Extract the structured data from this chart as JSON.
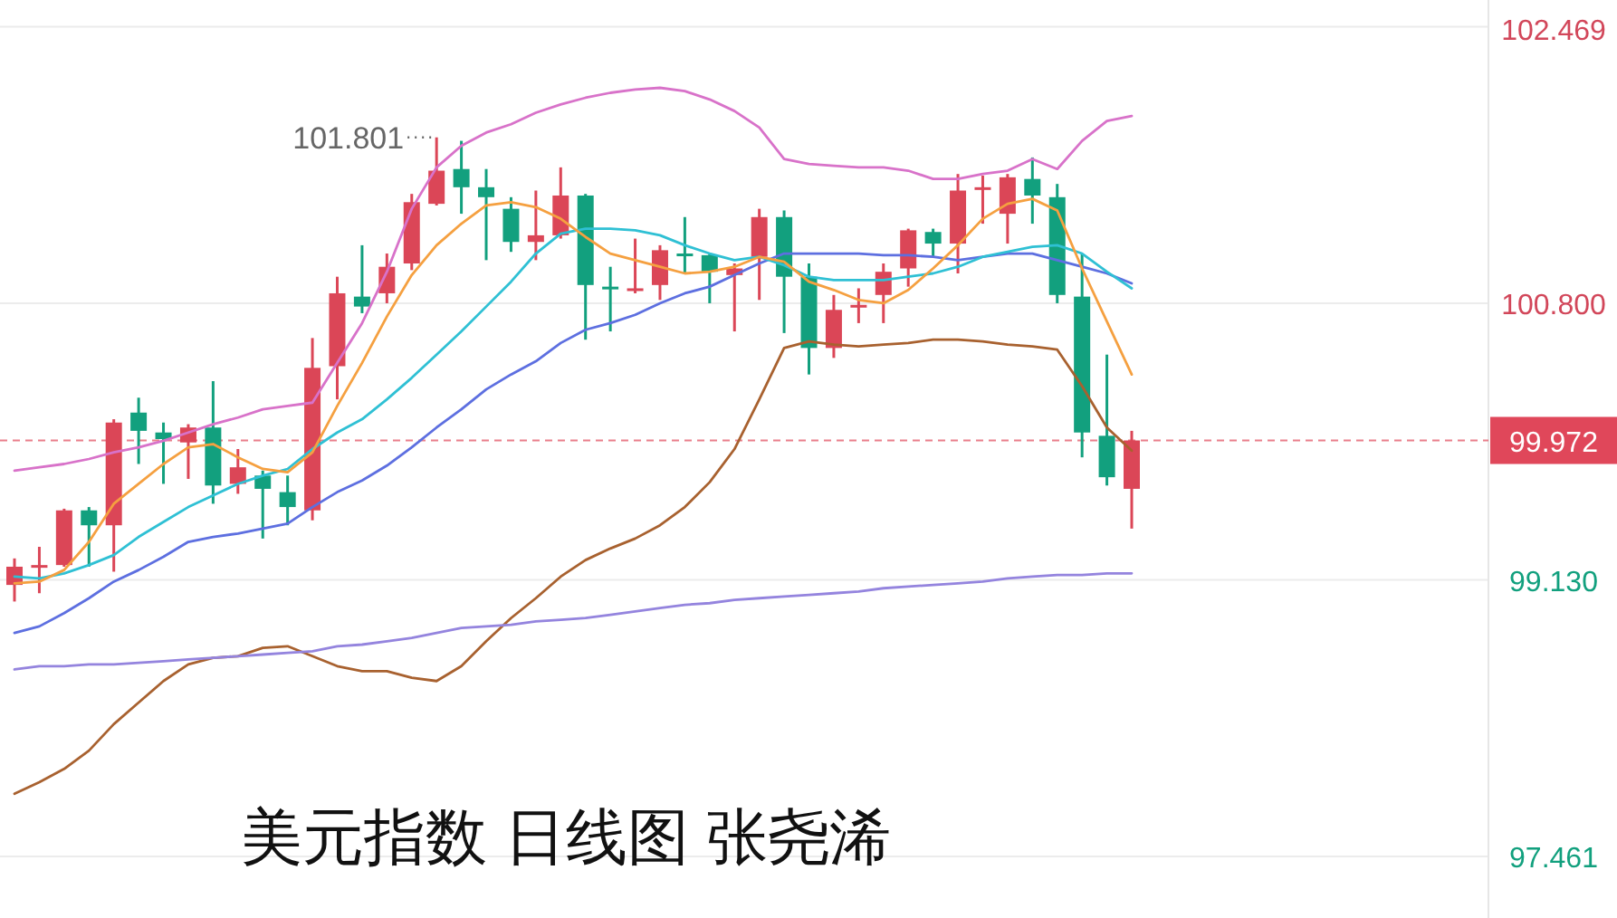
{
  "chart_data": {
    "type": "candlestick",
    "title": "美元指数 日线图 张尧浠",
    "categories": [
      null,
      null,
      null,
      null,
      null,
      null,
      null,
      null,
      null,
      null,
      null,
      null,
      null,
      null,
      null,
      null,
      null,
      null,
      null,
      null,
      null,
      null,
      null,
      null,
      null,
      null,
      null,
      null,
      null,
      null,
      null,
      null,
      null,
      null,
      null,
      null,
      null,
      null,
      null,
      null,
      null,
      null,
      null,
      null,
      null,
      null
    ],
    "ohlc": [
      [
        99.1,
        99.26,
        99.0,
        99.21
      ],
      [
        99.21,
        99.33,
        99.05,
        99.22
      ],
      [
        99.22,
        99.56,
        99.21,
        99.55
      ],
      [
        99.55,
        99.57,
        99.21,
        99.46
      ],
      [
        99.46,
        100.1,
        99.18,
        100.08
      ],
      [
        100.14,
        100.23,
        99.83,
        100.03
      ],
      [
        100.02,
        100.08,
        99.71,
        99.98
      ],
      [
        99.96,
        100.07,
        99.74,
        100.05
      ],
      [
        100.05,
        100.33,
        99.59,
        99.7
      ],
      [
        99.71,
        99.92,
        99.65,
        99.81
      ],
      [
        99.76,
        99.79,
        99.38,
        99.68
      ],
      [
        99.66,
        99.76,
        99.46,
        99.57
      ],
      [
        99.55,
        100.59,
        99.49,
        100.41
      ],
      [
        100.42,
        100.96,
        100.22,
        100.86
      ],
      [
        100.84,
        101.15,
        100.74,
        100.78
      ],
      [
        100.86,
        101.1,
        100.8,
        101.02
      ],
      [
        101.04,
        101.46,
        101.0,
        101.41
      ],
      [
        101.4,
        101.801,
        101.39,
        101.6
      ],
      [
        101.61,
        101.78,
        101.34,
        101.5
      ],
      [
        101.5,
        101.61,
        101.06,
        101.44
      ],
      [
        101.37,
        101.44,
        101.11,
        101.17
      ],
      [
        101.17,
        101.48,
        101.06,
        101.21
      ],
      [
        101.21,
        101.62,
        101.19,
        101.45
      ],
      [
        101.45,
        101.46,
        100.58,
        100.91
      ],
      [
        100.9,
        101.02,
        100.63,
        100.89
      ],
      [
        100.88,
        101.19,
        100.86,
        100.89
      ],
      [
        100.91,
        101.15,
        100.82,
        101.12
      ],
      [
        101.1,
        101.32,
        100.98,
        101.09
      ],
      [
        101.09,
        101.1,
        100.8,
        100.99
      ],
      [
        100.97,
        101.04,
        100.63,
        101.01
      ],
      [
        101.08,
        101.37,
        100.82,
        101.32
      ],
      [
        101.32,
        101.36,
        100.62,
        100.96
      ],
      [
        100.96,
        101.04,
        100.37,
        100.53
      ],
      [
        100.53,
        100.85,
        100.47,
        100.76
      ],
      [
        100.78,
        100.89,
        100.68,
        100.79
      ],
      [
        100.85,
        101.04,
        100.68,
        100.99
      ],
      [
        101.01,
        101.25,
        100.9,
        101.24
      ],
      [
        101.23,
        101.25,
        101.08,
        101.16
      ],
      [
        101.16,
        101.58,
        100.98,
        101.48
      ],
      [
        101.49,
        101.57,
        101.28,
        101.5
      ],
      [
        101.34,
        101.58,
        101.16,
        101.56
      ],
      [
        101.55,
        101.68,
        101.28,
        101.45
      ],
      [
        101.44,
        101.52,
        100.8,
        100.85
      ],
      [
        100.84,
        101.1,
        99.87,
        100.02
      ],
      [
        100.0,
        100.49,
        99.7,
        99.75
      ],
      [
        99.68,
        100.03,
        99.44,
        99.972
      ]
    ],
    "series": [
      {
        "type": "line",
        "color": "#d872c9",
        "values": [
          99.79,
          99.81,
          99.83,
          99.86,
          99.9,
          99.93,
          99.97,
          100.02,
          100.07,
          100.11,
          100.16,
          100.18,
          100.2,
          100.44,
          100.68,
          100.99,
          101.37,
          101.62,
          101.75,
          101.83,
          101.88,
          101.95,
          102.0,
          102.04,
          102.07,
          102.09,
          102.1,
          102.08,
          102.03,
          101.96,
          101.86,
          101.67,
          101.64,
          101.63,
          101.62,
          101.62,
          101.6,
          101.55,
          101.55,
          101.58,
          101.6,
          101.67,
          101.61,
          101.78,
          101.9,
          101.93
        ]
      },
      {
        "type": "line",
        "color": "#a8612f",
        "values": [
          97.84,
          97.91,
          97.99,
          98.1,
          98.26,
          98.39,
          98.52,
          98.62,
          98.66,
          98.67,
          98.72,
          98.73,
          98.67,
          98.61,
          98.58,
          98.58,
          98.54,
          98.52,
          98.61,
          98.76,
          98.9,
          99.02,
          99.15,
          99.25,
          99.32,
          99.38,
          99.46,
          99.57,
          99.72,
          99.92,
          100.22,
          100.53,
          100.57,
          100.55,
          100.54,
          100.55,
          100.56,
          100.58,
          100.58,
          100.57,
          100.55,
          100.54,
          100.52,
          100.3,
          100.05,
          99.91
        ]
      },
      {
        "type": "line",
        "color": "#9484de",
        "values": [
          98.59,
          98.61,
          98.61,
          98.62,
          98.62,
          98.63,
          98.64,
          98.65,
          98.66,
          98.67,
          98.68,
          98.69,
          98.7,
          98.73,
          98.74,
          98.76,
          98.78,
          98.81,
          98.84,
          98.85,
          98.86,
          98.88,
          98.89,
          98.9,
          98.92,
          98.94,
          98.96,
          98.98,
          98.99,
          99.01,
          99.02,
          99.03,
          99.04,
          99.05,
          99.06,
          99.08,
          99.09,
          99.1,
          99.11,
          99.12,
          99.14,
          99.15,
          99.16,
          99.16,
          99.17,
          99.17
        ]
      },
      {
        "type": "line",
        "color": "#5d6fe0",
        "values": [
          98.81,
          98.85,
          98.93,
          99.02,
          99.12,
          99.19,
          99.27,
          99.36,
          99.39,
          99.41,
          99.44,
          99.47,
          99.57,
          99.66,
          99.73,
          99.82,
          99.93,
          100.05,
          100.16,
          100.28,
          100.37,
          100.45,
          100.56,
          100.64,
          100.68,
          100.73,
          100.8,
          100.86,
          100.9,
          100.97,
          101.04,
          101.1,
          101.1,
          101.1,
          101.1,
          101.09,
          101.09,
          101.08,
          101.06,
          101.08,
          101.1,
          101.1,
          101.06,
          101.02,
          100.98,
          100.92
        ]
      },
      {
        "type": "line",
        "color": "#2fc0d4",
        "values": [
          99.15,
          99.14,
          99.17,
          99.22,
          99.28,
          99.39,
          99.48,
          99.57,
          99.64,
          99.71,
          99.76,
          99.8,
          99.92,
          100.02,
          100.1,
          100.22,
          100.35,
          100.49,
          100.63,
          100.78,
          100.93,
          101.1,
          101.22,
          101.25,
          101.25,
          101.24,
          101.21,
          101.15,
          101.1,
          101.06,
          101.08,
          101.03,
          100.96,
          100.94,
          100.94,
          100.94,
          100.96,
          100.98,
          101.02,
          101.08,
          101.11,
          101.14,
          101.15,
          101.1,
          100.99,
          100.89
        ]
      },
      {
        "type": "line",
        "color": "#f5a040",
        "values": [
          99.11,
          99.12,
          99.19,
          99.36,
          99.59,
          99.71,
          99.83,
          99.93,
          99.95,
          99.87,
          99.8,
          99.78,
          99.9,
          100.18,
          100.44,
          100.72,
          100.97,
          101.15,
          101.28,
          101.39,
          101.41,
          101.38,
          101.31,
          101.2,
          101.1,
          101.06,
          101.02,
          100.98,
          100.99,
          101.02,
          101.08,
          101.05,
          100.93,
          100.88,
          100.82,
          100.8,
          100.88,
          101.01,
          101.15,
          101.31,
          101.4,
          101.43,
          101.36,
          101.01,
          100.69,
          100.37
        ]
      }
    ],
    "ylim": [
      97.09,
      102.63
    ],
    "yticks": [
      97.461,
      {
        "value": 99.13,
        "label": "99.130"
      },
      {
        "value": 100.8,
        "label": "100.800"
      },
      102.469
    ],
    "grid": "y",
    "ref_lines": [
      {
        "axis": "y",
        "value": 99.972,
        "label": "99.972",
        "color": "#e0475a",
        "line_style": "dashed"
      }
    ],
    "annotations": [
      "101.801"
    ]
  }
}
